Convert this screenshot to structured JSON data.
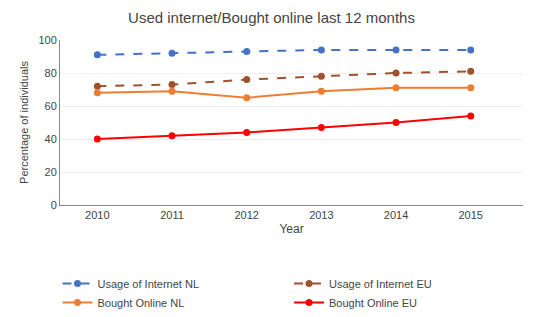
{
  "chart_data": {
    "type": "line",
    "title": "Used internet/Bought online last 12 months",
    "xlabel": "Year",
    "ylabel": "Percentage of individuals",
    "x": [
      2010,
      2011,
      2012,
      2013,
      2014,
      2015
    ],
    "series": [
      {
        "name": "Usage of Internet NL",
        "color": "#4472C4",
        "line_style": "dashed",
        "marker": "circle",
        "values": [
          91,
          92,
          93,
          94,
          94,
          94
        ]
      },
      {
        "name": "Usage of Internet EU",
        "color": "#A0522D",
        "line_style": "dashed",
        "marker": "circle",
        "values": [
          72,
          73,
          76,
          78,
          80,
          81
        ]
      },
      {
        "name": "Bought Online NL",
        "color": "#ED7D31",
        "line_style": "solid",
        "marker": "circle",
        "values": [
          68,
          69,
          65,
          69,
          71,
          71
        ]
      },
      {
        "name": "Bought Online EU",
        "color": "#FF0000",
        "line_style": "solid",
        "marker": "circle",
        "values": [
          40,
          42,
          44,
          47,
          50,
          54
        ]
      }
    ],
    "xlim": [
      2009.5,
      2015.7
    ],
    "xticks": [
      2010,
      2011,
      2012,
      2013,
      2014,
      2015
    ],
    "ylim": [
      0,
      100
    ],
    "yticks": [
      0,
      20,
      40,
      60,
      80,
      100
    ],
    "grid": true,
    "legend": "bottom"
  }
}
